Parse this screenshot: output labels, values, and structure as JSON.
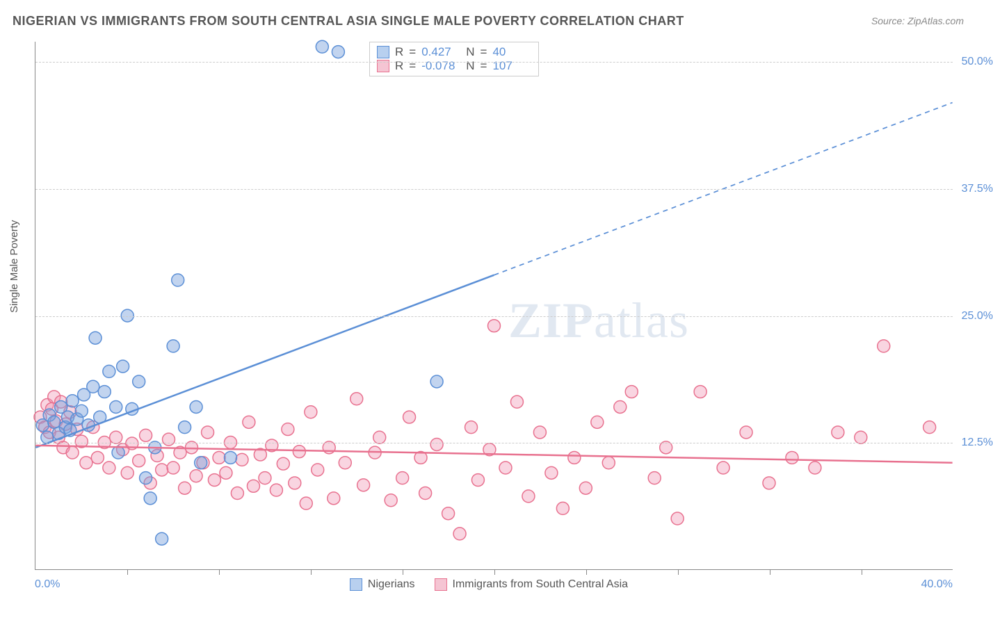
{
  "title": "NIGERIAN VS IMMIGRANTS FROM SOUTH CENTRAL ASIA SINGLE MALE POVERTY CORRELATION CHART",
  "source": "Source: ZipAtlas.com",
  "ylabel": "Single Male Poverty",
  "watermark_bold": "ZIP",
  "watermark_rest": "atlas",
  "chart": {
    "type": "scatter",
    "background_color": "#ffffff",
    "grid_color": "#cccccc",
    "axis_color": "#888888",
    "tick_label_color": "#5b8fd6",
    "xlim": [
      0,
      40
    ],
    "ylim": [
      0,
      52
    ],
    "x_start_label": "0.0%",
    "x_end_label": "40.0%",
    "ytick_values": [
      12.5,
      25.0,
      37.5,
      50.0
    ],
    "ytick_labels": [
      "12.5%",
      "25.0%",
      "37.5%",
      "50.0%"
    ],
    "xtick_values": [
      4,
      8,
      12,
      16,
      20,
      24,
      28,
      32,
      36
    ],
    "marker_radius": 9,
    "marker_stroke_width": 1.5,
    "trendline_width": 2.5,
    "series": [
      {
        "name": "Nigerians",
        "fill_color": "rgba(120,160,220,0.45)",
        "stroke_color": "#5b8fd6",
        "swatch_fill": "#b8d0ef",
        "swatch_border": "#5b8fd6",
        "R": "0.427",
        "N": "40",
        "trendline": {
          "x1": 0,
          "y1": 12.0,
          "x2": 40,
          "y2": 46.0,
          "solid_until_x": 20
        },
        "points": [
          [
            0.3,
            14.2
          ],
          [
            0.5,
            13.0
          ],
          [
            0.6,
            15.2
          ],
          [
            0.8,
            14.5
          ],
          [
            1.0,
            13.4
          ],
          [
            1.1,
            16.0
          ],
          [
            1.3,
            14.0
          ],
          [
            1.4,
            15.0
          ],
          [
            1.5,
            13.7
          ],
          [
            1.6,
            16.6
          ],
          [
            1.8,
            14.8
          ],
          [
            2.0,
            15.6
          ],
          [
            2.1,
            17.2
          ],
          [
            2.3,
            14.2
          ],
          [
            2.5,
            18.0
          ],
          [
            2.6,
            22.8
          ],
          [
            2.8,
            15.0
          ],
          [
            3.0,
            17.5
          ],
          [
            3.2,
            19.5
          ],
          [
            3.5,
            16.0
          ],
          [
            3.6,
            11.5
          ],
          [
            3.8,
            20.0
          ],
          [
            4.0,
            25.0
          ],
          [
            4.2,
            15.8
          ],
          [
            4.5,
            18.5
          ],
          [
            4.8,
            9.0
          ],
          [
            5.0,
            7.0
          ],
          [
            5.2,
            12.0
          ],
          [
            5.5,
            3.0
          ],
          [
            6.0,
            22.0
          ],
          [
            6.2,
            28.5
          ],
          [
            6.5,
            14.0
          ],
          [
            7.0,
            16.0
          ],
          [
            7.2,
            10.5
          ],
          [
            8.5,
            11.0
          ],
          [
            12.5,
            51.5
          ],
          [
            13.2,
            51.0
          ],
          [
            17.5,
            18.5
          ]
        ]
      },
      {
        "name": "Immigrants from South Central Asia",
        "fill_color": "rgba(240,150,180,0.40)",
        "stroke_color": "#e8718f",
        "swatch_fill": "#f5c5d3",
        "swatch_border": "#e8718f",
        "R": "-0.078",
        "N": "107",
        "trendline": {
          "x1": 0,
          "y1": 12.2,
          "x2": 40,
          "y2": 10.5,
          "solid_until_x": 40
        },
        "points": [
          [
            0.2,
            15.0
          ],
          [
            0.4,
            14.0
          ],
          [
            0.5,
            16.2
          ],
          [
            0.6,
            13.5
          ],
          [
            0.7,
            15.8
          ],
          [
            0.8,
            17.0
          ],
          [
            0.9,
            14.6
          ],
          [
            1.0,
            13.0
          ],
          [
            1.1,
            16.5
          ],
          [
            1.2,
            12.0
          ],
          [
            1.3,
            14.3
          ],
          [
            1.5,
            15.5
          ],
          [
            1.6,
            11.5
          ],
          [
            1.8,
            13.8
          ],
          [
            2.0,
            12.6
          ],
          [
            2.2,
            10.5
          ],
          [
            2.5,
            14.0
          ],
          [
            2.7,
            11.0
          ],
          [
            3.0,
            12.5
          ],
          [
            3.2,
            10.0
          ],
          [
            3.5,
            13.0
          ],
          [
            3.8,
            11.8
          ],
          [
            4.0,
            9.5
          ],
          [
            4.2,
            12.4
          ],
          [
            4.5,
            10.7
          ],
          [
            4.8,
            13.2
          ],
          [
            5.0,
            8.5
          ],
          [
            5.3,
            11.2
          ],
          [
            5.5,
            9.8
          ],
          [
            5.8,
            12.8
          ],
          [
            6.0,
            10.0
          ],
          [
            6.3,
            11.5
          ],
          [
            6.5,
            8.0
          ],
          [
            6.8,
            12.0
          ],
          [
            7.0,
            9.2
          ],
          [
            7.3,
            10.5
          ],
          [
            7.5,
            13.5
          ],
          [
            7.8,
            8.8
          ],
          [
            8.0,
            11.0
          ],
          [
            8.3,
            9.5
          ],
          [
            8.5,
            12.5
          ],
          [
            8.8,
            7.5
          ],
          [
            9.0,
            10.8
          ],
          [
            9.3,
            14.5
          ],
          [
            9.5,
            8.2
          ],
          [
            9.8,
            11.3
          ],
          [
            10.0,
            9.0
          ],
          [
            10.3,
            12.2
          ],
          [
            10.5,
            7.8
          ],
          [
            10.8,
            10.4
          ],
          [
            11.0,
            13.8
          ],
          [
            11.3,
            8.5
          ],
          [
            11.5,
            11.6
          ],
          [
            11.8,
            6.5
          ],
          [
            12.0,
            15.5
          ],
          [
            12.3,
            9.8
          ],
          [
            12.8,
            12.0
          ],
          [
            13.0,
            7.0
          ],
          [
            13.5,
            10.5
          ],
          [
            14.0,
            16.8
          ],
          [
            14.3,
            8.3
          ],
          [
            14.8,
            11.5
          ],
          [
            15.0,
            13.0
          ],
          [
            15.5,
            6.8
          ],
          [
            16.0,
            9.0
          ],
          [
            16.3,
            15.0
          ],
          [
            16.8,
            11.0
          ],
          [
            17.0,
            7.5
          ],
          [
            17.5,
            12.3
          ],
          [
            18.0,
            5.5
          ],
          [
            18.5,
            3.5
          ],
          [
            19.0,
            14.0
          ],
          [
            19.3,
            8.8
          ],
          [
            19.8,
            11.8
          ],
          [
            20.0,
            24.0
          ],
          [
            20.5,
            10.0
          ],
          [
            21.0,
            16.5
          ],
          [
            21.5,
            7.2
          ],
          [
            22.0,
            13.5
          ],
          [
            22.5,
            9.5
          ],
          [
            23.0,
            6.0
          ],
          [
            23.5,
            11.0
          ],
          [
            24.0,
            8.0
          ],
          [
            24.5,
            14.5
          ],
          [
            25.0,
            10.5
          ],
          [
            25.5,
            16.0
          ],
          [
            26.0,
            17.5
          ],
          [
            27.0,
            9.0
          ],
          [
            27.5,
            12.0
          ],
          [
            28.0,
            5.0
          ],
          [
            29.0,
            17.5
          ],
          [
            30.0,
            10.0
          ],
          [
            31.0,
            13.5
          ],
          [
            32.0,
            8.5
          ],
          [
            33.0,
            11.0
          ],
          [
            34.0,
            10.0
          ],
          [
            35.0,
            13.5
          ],
          [
            36.0,
            13.0
          ],
          [
            37.0,
            22.0
          ],
          [
            39.0,
            14.0
          ]
        ]
      }
    ]
  },
  "stats_labels": {
    "R": "R",
    "N": "N",
    "equals": "="
  },
  "legend_bottom_label_1": "Nigerians",
  "legend_bottom_label_2": "Immigrants from South Central Asia"
}
